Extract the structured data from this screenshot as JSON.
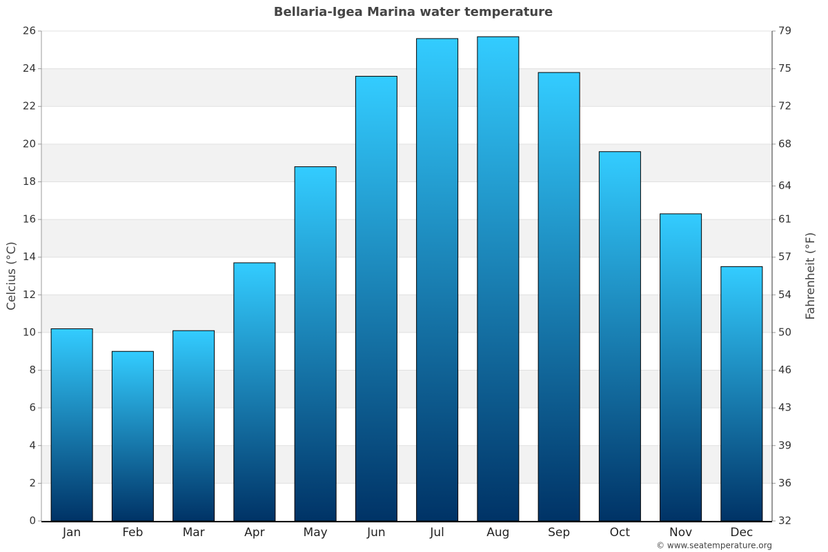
{
  "chart_data": {
    "type": "bar",
    "title": "Bellaria-Igea Marina water temperature",
    "y_label": "Celcius (°C)",
    "y2_label": "Fahrenheit (°F)",
    "source": "© www.seatemperature.org",
    "categories": [
      "Jan",
      "Feb",
      "Mar",
      "Apr",
      "May",
      "Jun",
      "Jul",
      "Aug",
      "Sep",
      "Oct",
      "Nov",
      "Dec"
    ],
    "values": [
      10.2,
      9.0,
      10.1,
      13.7,
      18.8,
      23.6,
      25.6,
      25.7,
      23.8,
      19.6,
      16.3,
      13.5
    ],
    "color_top": "#33ccff",
    "color_bottom": "#003366",
    "ylim": [
      0,
      26
    ],
    "yticks": [
      0,
      2,
      4,
      6,
      8,
      10,
      12,
      14,
      16,
      18,
      20,
      22,
      24,
      26
    ],
    "y2lim": [
      32,
      78.8
    ],
    "y2ticks": [
      32,
      {
        "value": 35.6,
        "label": "36"
      },
      {
        "value": 39.2,
        "label": "39"
      },
      {
        "value": 42.8,
        "label": "43"
      },
      {
        "value": 46.4,
        "label": "46"
      },
      50,
      {
        "value": 53.6,
        "label": "54"
      },
      {
        "value": 57.2,
        "label": "57"
      },
      {
        "value": 60.8,
        "label": "61"
      },
      64,
      68,
      {
        "value": 71.6,
        "label": "72"
      },
      {
        "value": 75.2,
        "label": "75"
      },
      {
        "value": 78.8,
        "label": "79"
      }
    ],
    "grid": true
  }
}
